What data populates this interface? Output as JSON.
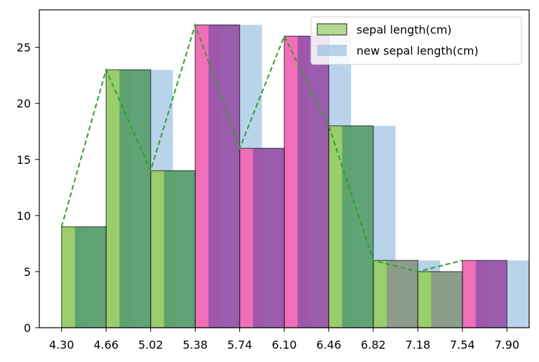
{
  "chart_data": {
    "type": "bar",
    "title": "",
    "xlabel": "",
    "ylabel": "",
    "xlim": [
      4.12,
      8.08
    ],
    "ylim": [
      0,
      28.35
    ],
    "x_ticks": [
      "4.30",
      "4.66",
      "5.02",
      "5.38",
      "5.74",
      "6.10",
      "6.46",
      "6.82",
      "7.18",
      "7.54",
      "7.90"
    ],
    "y_ticks": [
      "0",
      "5",
      "10",
      "15",
      "20",
      "25"
    ],
    "grid": false,
    "legend_position": "top-right",
    "bin_edges": [
      4.3,
      4.66,
      5.02,
      5.38,
      5.74,
      6.1,
      6.46,
      6.82,
      7.18,
      7.54,
      7.9
    ],
    "series": [
      {
        "name": "sepal length(cm)",
        "kind": "histogram-edge",
        "color": "#9acd6b",
        "edge_color": "#1a1a1a",
        "values": [
          9,
          23,
          14,
          27,
          16,
          26,
          18,
          6,
          5,
          6
        ]
      },
      {
        "name": "new sepal length(cm)",
        "kind": "histogram-mid",
        "color": "#8ab8dc",
        "values": [
          9,
          23,
          14,
          27,
          16,
          26,
          18,
          6,
          5,
          6
        ]
      },
      {
        "kind": "overlay",
        "values": [
          9,
          23,
          14,
          27,
          16,
          26,
          18,
          6,
          5,
          6
        ],
        "colors": [
          "#5aa070",
          "#5aa070",
          "#5aa070",
          "#9a55aa",
          "#9a55aa",
          "#9a55aa",
          "#5aa070",
          "#8a9a88",
          "#8a9a88",
          "#9a55aa"
        ],
        "accent_colors": [
          "#9acd6b",
          "#9acd6b",
          "#9acd6b",
          "#f06fb8",
          "#f06fb8",
          "#f06fb8",
          "#9acd6b",
          "#9acd6b",
          "#9acd6b",
          "#f06fb8"
        ]
      },
      {
        "kind": "frequency-line",
        "color": "#2ca02c",
        "style": "dashed",
        "x": [
          4.3,
          4.66,
          5.02,
          5.38,
          5.74,
          6.1,
          6.46,
          6.82,
          7.18,
          7.54
        ],
        "y": [
          9,
          23,
          14,
          27,
          16,
          26,
          18,
          6,
          5,
          6
        ]
      }
    ]
  }
}
